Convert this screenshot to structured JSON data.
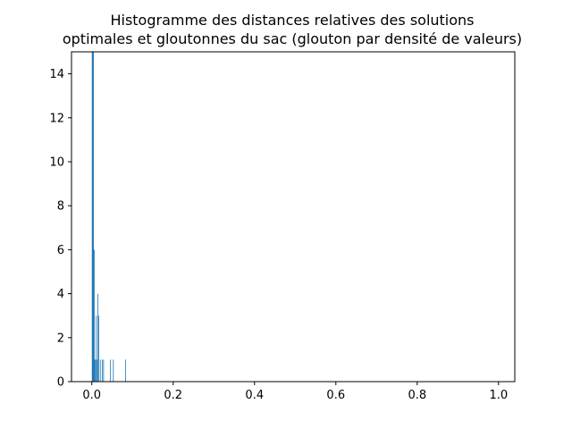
{
  "chart_data": {
    "type": "bar",
    "title_lines": [
      "Histogramme des distances relatives des solutions",
      "optimales et gloutonnes du sac (glouton par densité de valeurs)"
    ],
    "xlabel": "",
    "ylabel": "",
    "xlim": [
      -0.05,
      1.04
    ],
    "ylim": [
      0,
      15
    ],
    "x_ticks": [
      0.0,
      0.2,
      0.4,
      0.6,
      0.8,
      1.0
    ],
    "x_tick_labels": [
      "0.0",
      "0.2",
      "0.4",
      "0.6",
      "0.8",
      "1.0"
    ],
    "y_ticks": [
      0,
      2,
      4,
      6,
      8,
      10,
      12,
      14
    ],
    "y_tick_labels": [
      "0",
      "2",
      "4",
      "6",
      "8",
      "10",
      "12",
      "14"
    ],
    "bin_width": 0.001,
    "bins": [
      {
        "x": 0.0,
        "count": 15
      },
      {
        "x": 0.001,
        "count": 15
      },
      {
        "x": 0.002,
        "count": 15
      },
      {
        "x": 0.003,
        "count": 15
      },
      {
        "x": 0.004,
        "count": 6
      },
      {
        "x": 0.005,
        "count": 6
      },
      {
        "x": 0.006,
        "count": 1
      },
      {
        "x": 0.008,
        "count": 1
      },
      {
        "x": 0.01,
        "count": 3
      },
      {
        "x": 0.012,
        "count": 1
      },
      {
        "x": 0.014,
        "count": 4
      },
      {
        "x": 0.016,
        "count": 3
      },
      {
        "x": 0.02,
        "count": 1
      },
      {
        "x": 0.025,
        "count": 1
      },
      {
        "x": 0.028,
        "count": 1
      },
      {
        "x": 0.045,
        "count": 1
      },
      {
        "x": 0.052,
        "count": 1
      },
      {
        "x": 0.082,
        "count": 1
      }
    ],
    "bar_color": "#1f77b4",
    "grid": false,
    "legend": "none"
  }
}
